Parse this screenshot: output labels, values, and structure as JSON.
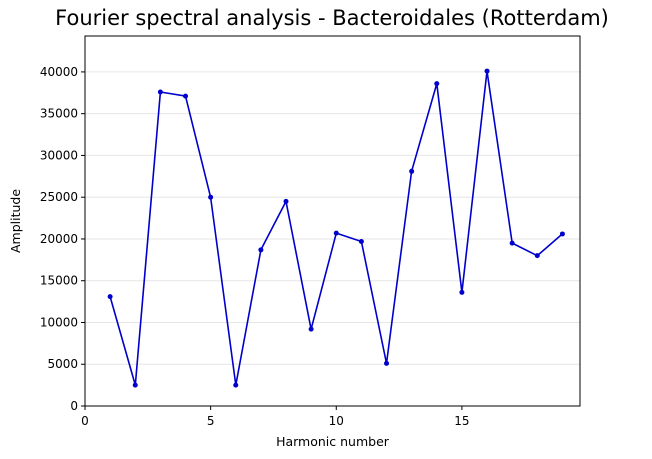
{
  "chart_data": {
    "type": "line",
    "title": "Fourier spectral analysis - Bacteroidales (Rotterdam)",
    "xlabel": "Harmonic number",
    "ylabel": "Amplitude",
    "xlim": [
      0,
      19.7
    ],
    "ylim": [
      0,
      44300
    ],
    "xticks": [
      0,
      5,
      10,
      15
    ],
    "yticks": [
      0,
      5000,
      10000,
      15000,
      20000,
      25000,
      30000,
      35000,
      40000
    ],
    "grid": "horizontal",
    "line_color": "#0000cc",
    "x": [
      1,
      2,
      3,
      4,
      5,
      6,
      7,
      8,
      9,
      10,
      11,
      12,
      13,
      14,
      15,
      16,
      17,
      18,
      19
    ],
    "y": [
      13100,
      2500,
      37600,
      37100,
      25000,
      2500,
      18700,
      24500,
      9200,
      20700,
      19700,
      5100,
      28100,
      38600,
      13600,
      40100,
      19500,
      18000,
      20600
    ]
  }
}
